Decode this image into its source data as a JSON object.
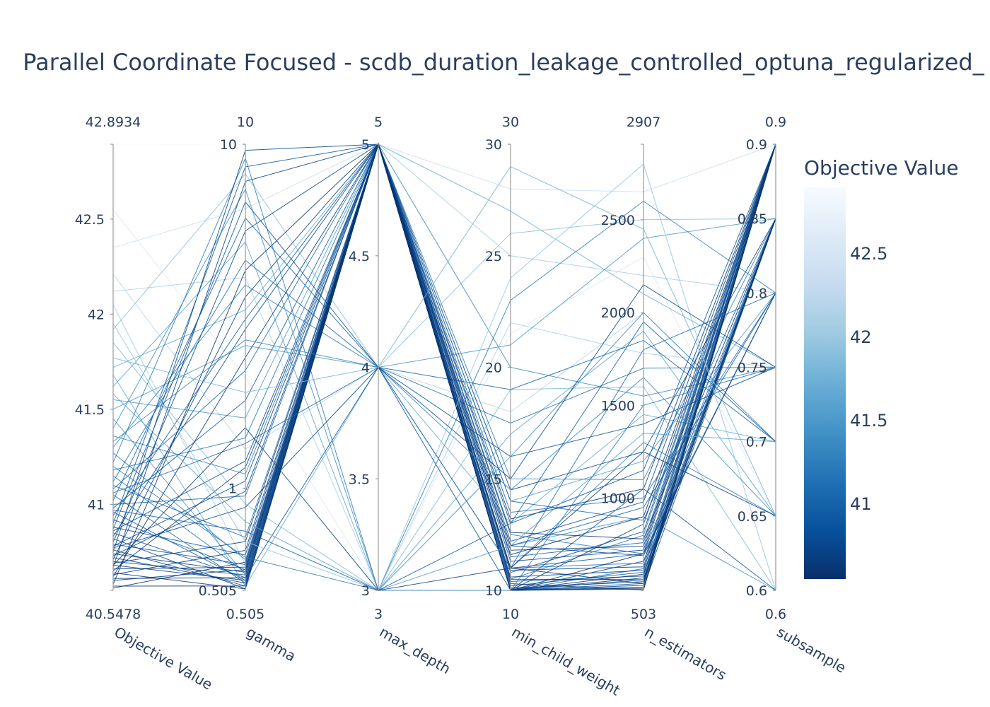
{
  "chart_data": {
    "type": "parallel_coordinates",
    "title": "Parallel Coordinate Focused - scdb_duration_leakage_controlled_optuna_regularized_",
    "dimensions": [
      {
        "name": "Objective Value",
        "range": [
          40.5478,
          42.8934
        ],
        "range_labels": [
          "40.5478",
          "42.8934"
        ],
        "ticks": [
          {
            "v": 41,
            "label": "41"
          },
          {
            "v": 41.5,
            "label": "41.5"
          },
          {
            "v": 42,
            "label": "42"
          },
          {
            "v": 42.5,
            "label": "42.5"
          }
        ],
        "scale": "linear"
      },
      {
        "name": "gamma",
        "range": [
          0.505,
          10
        ],
        "range_labels": [
          "0.505",
          "10"
        ],
        "ticks": [
          {
            "v": 0.505,
            "label": "0.505"
          },
          {
            "v": 1,
            "label": "1"
          },
          {
            "v": 10,
            "label": "10"
          }
        ],
        "scale": "log"
      },
      {
        "name": "max_depth",
        "range": [
          3,
          5
        ],
        "range_labels": [
          "3",
          "5"
        ],
        "ticks": [
          {
            "v": 3,
            "label": "3"
          },
          {
            "v": 3.5,
            "label": "3.5"
          },
          {
            "v": 4,
            "label": "4"
          },
          {
            "v": 4.5,
            "label": "4.5"
          },
          {
            "v": 5,
            "label": "5"
          }
        ],
        "scale": "linear"
      },
      {
        "name": "min_child_weight",
        "range": [
          10,
          30
        ],
        "range_labels": [
          "10",
          "30"
        ],
        "ticks": [
          {
            "v": 10,
            "label": "10"
          },
          {
            "v": 15,
            "label": "15"
          },
          {
            "v": 20,
            "label": "20"
          },
          {
            "v": 25,
            "label": "25"
          },
          {
            "v": 30,
            "label": "30"
          }
        ],
        "scale": "linear"
      },
      {
        "name": "n_estimators",
        "range": [
          503,
          2907
        ],
        "range_labels": [
          "503",
          "2907"
        ],
        "ticks": [
          {
            "v": 1000,
            "label": "1000"
          },
          {
            "v": 1500,
            "label": "1500"
          },
          {
            "v": 2000,
            "label": "2000"
          },
          {
            "v": 2500,
            "label": "2500"
          }
        ],
        "scale": "linear"
      },
      {
        "name": "subsample",
        "range": [
          0.6,
          0.9
        ],
        "range_labels": [
          "0.6",
          "0.9"
        ],
        "ticks": [
          {
            "v": 0.6,
            "label": "0.6"
          },
          {
            "v": 0.65,
            "label": "0.65"
          },
          {
            "v": 0.7,
            "label": "0.7"
          },
          {
            "v": 0.75,
            "label": "0.75"
          },
          {
            "v": 0.8,
            "label": "0.8"
          },
          {
            "v": 0.85,
            "label": "0.85"
          },
          {
            "v": 0.9,
            "label": "0.9"
          }
        ],
        "scale": "linear"
      }
    ],
    "colorbar": {
      "title": "Objective Value",
      "range": [
        40.5478,
        42.8934
      ],
      "ticks": [
        {
          "v": 41,
          "label": "41"
        },
        {
          "v": 41.5,
          "label": "41.5"
        },
        {
          "v": 42,
          "label": "42"
        },
        {
          "v": 42.5,
          "label": "42.5"
        }
      ],
      "colorscale": "Blues",
      "color_low": "#08306b",
      "color_high": "#f7fbff"
    },
    "trials": [
      [
        42.89,
        10,
        5,
        30,
        2907,
        0.9
      ],
      [
        42.55,
        2.1,
        3,
        21.5,
        2300,
        0.65
      ],
      [
        42.35,
        6.5,
        5,
        28,
        2650,
        0.9
      ],
      [
        42.21,
        1.3,
        4,
        18,
        2000,
        0.7
      ],
      [
        42.12,
        4.1,
        3,
        22,
        1780,
        0.75
      ],
      [
        42.05,
        0.6,
        5,
        25,
        2200,
        0.8
      ],
      [
        41.92,
        8.2,
        4,
        26,
        2500,
        0.85
      ],
      [
        41.85,
        0.9,
        3,
        19,
        1600,
        0.6
      ],
      [
        41.72,
        3.3,
        5,
        27,
        2100,
        0.75
      ],
      [
        41.68,
        0.52,
        4,
        13,
        1450,
        0.7
      ],
      [
        41.62,
        5.2,
        3,
        17,
        1900,
        0.65
      ],
      [
        41.55,
        1.6,
        5,
        14,
        1200,
        0.8
      ],
      [
        41.5,
        2.6,
        4,
        21,
        2400,
        0.85
      ],
      [
        41.45,
        0.56,
        5,
        12,
        900,
        0.6
      ],
      [
        41.4,
        7.4,
        3,
        16,
        2000,
        0.7
      ],
      [
        41.36,
        1.1,
        5,
        20,
        1550,
        0.75
      ],
      [
        41.3,
        3.9,
        4,
        11,
        1300,
        0.65
      ],
      [
        41.27,
        0.62,
        5,
        15,
        1100,
        0.85
      ],
      [
        41.22,
        9.1,
        3,
        23,
        2600,
        0.8
      ],
      [
        41.18,
        1.4,
        5,
        10.5,
        800,
        0.9
      ],
      [
        41.15,
        0.57,
        5,
        12.5,
        700,
        0.85
      ],
      [
        41.12,
        4.6,
        4,
        17.5,
        1700,
        0.75
      ],
      [
        41.1,
        0.72,
        5,
        11,
        650,
        0.9
      ],
      [
        41.08,
        2.2,
        5,
        13.5,
        1000,
        0.8
      ],
      [
        41.05,
        0.53,
        5,
        10,
        620,
        0.85
      ],
      [
        41.02,
        6.1,
        4,
        19,
        1850,
        0.7
      ],
      [
        41.0,
        0.95,
        5,
        11.5,
        760,
        0.9
      ],
      [
        40.98,
        1.8,
        5,
        14,
        880,
        0.85
      ],
      [
        40.96,
        0.54,
        5,
        10,
        560,
        0.9
      ],
      [
        40.94,
        3.1,
        5,
        12,
        950,
        0.8
      ],
      [
        40.92,
        0.58,
        5,
        10.2,
        600,
        0.85
      ],
      [
        40.9,
        8.6,
        5,
        13,
        1150,
        0.9
      ],
      [
        40.88,
        0.64,
        5,
        10,
        540,
        0.9
      ],
      [
        40.86,
        1.2,
        5,
        11,
        700,
        0.8
      ],
      [
        40.85,
        0.55,
        4,
        16,
        1400,
        0.75
      ],
      [
        40.83,
        2.9,
        5,
        10.8,
        820,
        0.9
      ],
      [
        40.82,
        0.51,
        5,
        10,
        520,
        0.85
      ],
      [
        40.8,
        5.6,
        5,
        12.2,
        980,
        0.9
      ],
      [
        40.79,
        0.6,
        5,
        10.4,
        580,
        0.9
      ],
      [
        40.78,
        1.05,
        5,
        10,
        660,
        0.85
      ],
      [
        40.76,
        0.52,
        5,
        11.3,
        720,
        0.9
      ],
      [
        40.75,
        9.6,
        5,
        14.5,
        1250,
        0.85
      ],
      [
        40.74,
        0.57,
        5,
        10,
        530,
        0.9
      ],
      [
        40.73,
        0.98,
        5,
        10.6,
        610,
        0.9
      ],
      [
        40.72,
        0.53,
        5,
        12,
        690,
        0.8
      ],
      [
        40.71,
        3.6,
        5,
        10,
        860,
        0.9
      ],
      [
        40.7,
        0.56,
        5,
        10.1,
        550,
        0.85
      ],
      [
        40.69,
        0.7,
        5,
        11.8,
        740,
        0.9
      ],
      [
        40.68,
        0.54,
        5,
        10,
        510,
        0.9
      ],
      [
        40.67,
        7.8,
        5,
        13.2,
        1050,
        0.9
      ],
      [
        40.66,
        0.59,
        5,
        10,
        570,
        0.85
      ],
      [
        40.65,
        1.15,
        5,
        10.9,
        630,
        0.9
      ],
      [
        40.64,
        0.51,
        5,
        10.3,
        505,
        0.9
      ],
      [
        40.63,
        0.66,
        5,
        12.6,
        780,
        0.85
      ],
      [
        40.62,
        2.4,
        5,
        10,
        700,
        0.9
      ],
      [
        40.61,
        0.55,
        5,
        11,
        540,
        0.9
      ],
      [
        40.6,
        0.58,
        5,
        10,
        590,
        0.85
      ],
      [
        40.58,
        4.3,
        5,
        11.6,
        900,
        0.9
      ],
      [
        40.57,
        0.52,
        5,
        10,
        515,
        0.9
      ],
      [
        40.56,
        0.61,
        5,
        10.5,
        560,
        0.85
      ],
      [
        41.95,
        0.7,
        3,
        24,
        2800,
        0.6
      ],
      [
        41.77,
        1.9,
        4,
        29,
        2450,
        0.65
      ],
      [
        41.58,
        0.8,
        3,
        12,
        1350,
        0.7
      ],
      [
        41.33,
        2.7,
        4,
        14.5,
        1650,
        0.65
      ],
      [
        41.2,
        0.63,
        3,
        10,
        1500,
        0.75
      ],
      [
        41.06,
        1.35,
        4,
        11,
        1800,
        0.8
      ],
      [
        40.97,
        0.75,
        3,
        13,
        1950,
        0.7
      ],
      [
        40.87,
        6.8,
        4,
        10,
        1050,
        0.6
      ],
      [
        40.77,
        0.88,
        4,
        15,
        2150,
        0.75
      ],
      [
        40.68,
        1.5,
        3,
        11,
        1250,
        0.65
      ]
    ]
  }
}
